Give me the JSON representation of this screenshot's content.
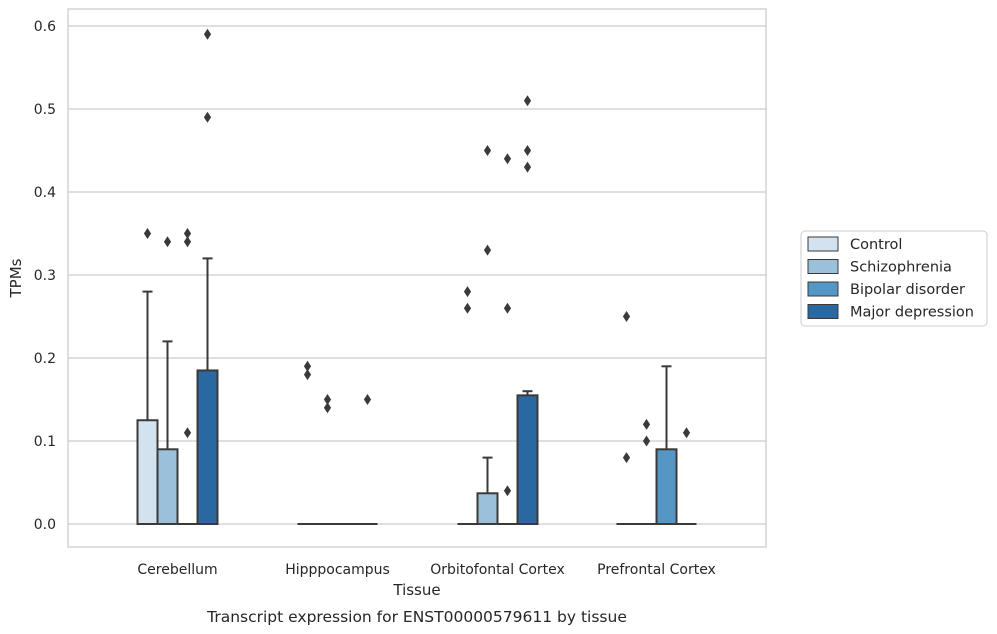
{
  "caption": "Transcript expression for ENST00000579611 by tissue",
  "chart_data": {
    "type": "box",
    "xlabel": "Tissue",
    "ylabel": "TPMs",
    "ylim": [
      -0.028,
      0.62
    ],
    "yticks": [
      "0.0",
      "0.1",
      "0.2",
      "0.3",
      "0.4",
      "0.5",
      "0.6"
    ],
    "categories": [
      "Cerebellum",
      "Hipppocampus",
      "Orbitofontal Cortex",
      "Prefrontal Cortex"
    ],
    "grid": "horizontal",
    "legend_position": "right",
    "series": [
      {
        "name": "Control",
        "color": "#d2e2ef",
        "boxes": [
          {
            "q1": 0,
            "median": 0,
            "q3": 0.125,
            "whisker_low": 0,
            "whisker_high": 0.28,
            "outliers": [
              0.35
            ]
          },
          {
            "q1": 0,
            "median": 0,
            "q3": 0,
            "whisker_low": 0,
            "whisker_high": 0,
            "outliers": [
              0.19,
              0.18
            ]
          },
          {
            "q1": 0,
            "median": 0,
            "q3": 0,
            "whisker_low": 0,
            "whisker_high": 0,
            "outliers": [
              0.28,
              0.26
            ]
          },
          {
            "q1": 0,
            "median": 0,
            "q3": 0,
            "whisker_low": 0,
            "whisker_high": 0,
            "outliers": [
              0.25,
              0.08
            ]
          }
        ]
      },
      {
        "name": "Schizophrenia",
        "color": "#9ac1d9",
        "boxes": [
          {
            "q1": 0,
            "median": 0,
            "q3": 0.09,
            "whisker_low": 0,
            "whisker_high": 0.22,
            "outliers": [
              0.34
            ]
          },
          {
            "q1": 0,
            "median": 0,
            "q3": 0,
            "whisker_low": 0,
            "whisker_high": 0,
            "outliers": [
              0.15,
              0.14
            ]
          },
          {
            "q1": 0,
            "median": 0,
            "q3": 0.037,
            "whisker_low": 0,
            "whisker_high": 0.08,
            "outliers": [
              0.45,
              0.33
            ]
          },
          {
            "q1": 0,
            "median": 0,
            "q3": 0,
            "whisker_low": 0,
            "whisker_high": 0,
            "outliers": [
              0.12,
              0.1
            ]
          }
        ]
      },
      {
        "name": "Bipolar disorder",
        "color": "#5597c4",
        "boxes": [
          {
            "q1": 0,
            "median": 0,
            "q3": 0,
            "whisker_low": 0,
            "whisker_high": 0,
            "outliers": [
              0.35,
              0.34,
              0.11
            ]
          },
          {
            "q1": 0,
            "median": 0,
            "q3": 0,
            "whisker_low": 0,
            "whisker_high": 0,
            "outliers": []
          },
          {
            "q1": 0,
            "median": 0,
            "q3": 0,
            "whisker_low": 0,
            "whisker_high": 0,
            "outliers": [
              0.44,
              0.26,
              0.04
            ]
          },
          {
            "q1": 0,
            "median": 0,
            "q3": 0.09,
            "whisker_low": 0,
            "whisker_high": 0.19,
            "outliers": []
          }
        ]
      },
      {
        "name": "Major depression",
        "color": "#2a68a1",
        "boxes": [
          {
            "q1": 0,
            "median": 0,
            "q3": 0.185,
            "whisker_low": 0,
            "whisker_high": 0.32,
            "outliers": [
              0.59,
              0.49
            ]
          },
          {
            "q1": 0,
            "median": 0,
            "q3": 0,
            "whisker_low": 0,
            "whisker_high": 0,
            "outliers": [
              0.15
            ]
          },
          {
            "q1": 0,
            "median": 0,
            "q3": 0.155,
            "whisker_low": 0,
            "whisker_high": 0.16,
            "outliers": [
              0.51,
              0.45,
              0.43
            ]
          },
          {
            "q1": 0,
            "median": 0,
            "q3": 0,
            "whisker_low": 0,
            "whisker_high": 0,
            "outliers": [
              0.11
            ]
          }
        ]
      }
    ]
  }
}
